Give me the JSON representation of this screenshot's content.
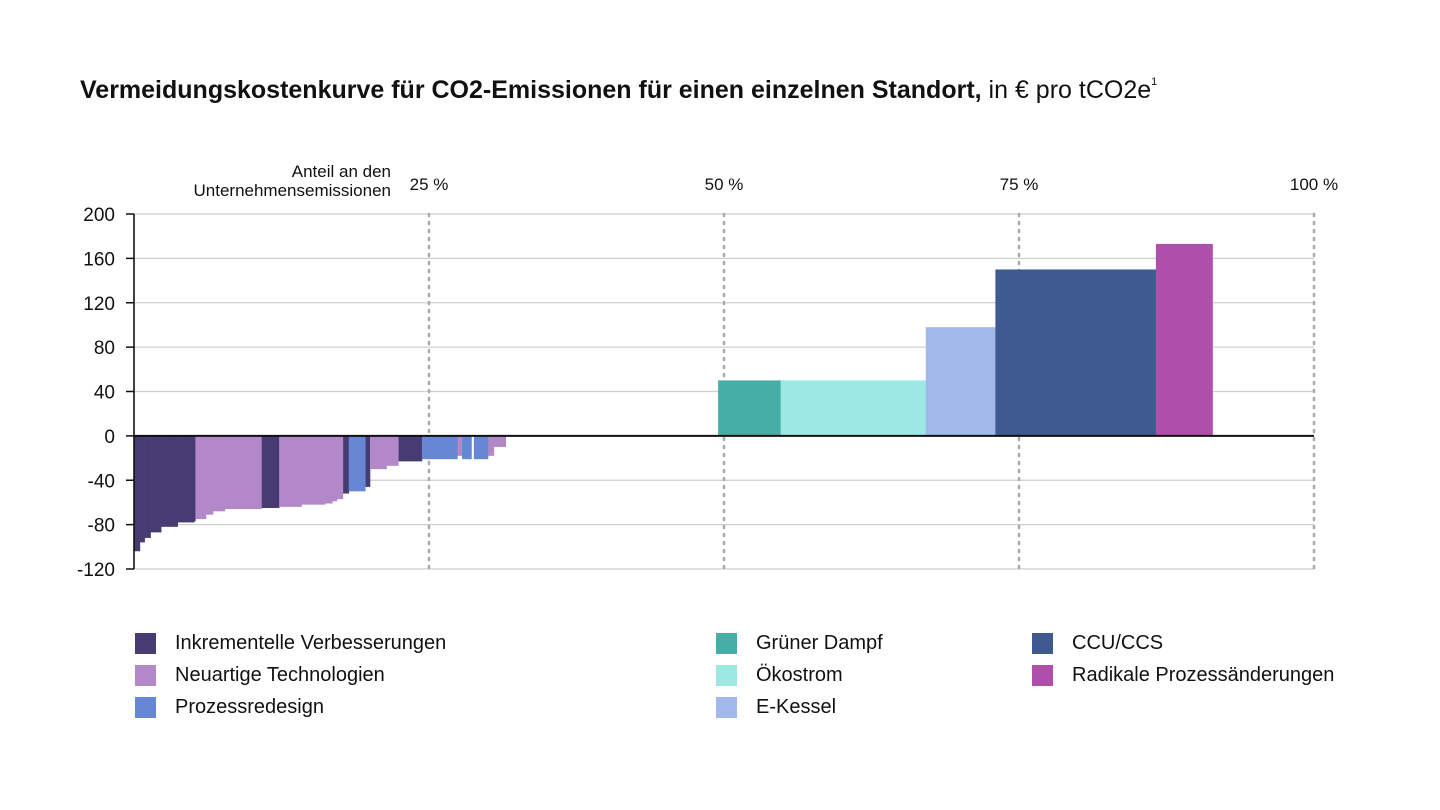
{
  "title": {
    "bold": "Vermeidungskostenkurve für CO2-Emissionen für einen einzelnen Standort,",
    "normal": " in € pro tCO2e",
    "footnote": "1"
  },
  "colors": {
    "inkrementell": "#463c72",
    "neuartig": "#b288c8",
    "prozessredesign": "#6688d4",
    "gruener_dampf": "#47aea7",
    "oekostrom": "#9de8e3",
    "ekessel": "#a3b8ea",
    "ccu": "#3e5a8e",
    "radikal": "#ad4fab"
  },
  "legend": [
    {
      "label": "Inkrementelle Verbesserungen",
      "color_key": "inkrementell"
    },
    {
      "label": "Neuartige Technologien",
      "color_key": "neuartig"
    },
    {
      "label": "Prozessredesign",
      "color_key": "prozessredesign"
    },
    {
      "label": "Grüner Dampf",
      "color_key": "gruener_dampf"
    },
    {
      "label": "Ökostrom",
      "color_key": "oekostrom"
    },
    {
      "label": "E-Kessel",
      "color_key": "ekessel"
    },
    {
      "label": "CCU/CCS",
      "color_key": "ccu"
    },
    {
      "label": "Radikale Prozessänderungen",
      "color_key": "radikal"
    }
  ],
  "chart_data": {
    "type": "bar",
    "title": "Vermeidungskostenkurve für CO2-Emissionen für einen einzelnen Standort, in € pro tCO2e",
    "xlabel": "Anteil an den Unternehmensemissionen",
    "ylabel": "",
    "x_axis_position": "top",
    "xlim": [
      0,
      100
    ],
    "ylim": [
      -120,
      200
    ],
    "xticks": [
      25,
      50,
      75,
      100
    ],
    "xtick_labels": [
      "25 %",
      "50 %",
      "75 %",
      "100 %"
    ],
    "yticks": [
      200,
      160,
      120,
      80,
      40,
      0,
      -40,
      -80,
      -120
    ],
    "ytick_labels": [
      "200",
      "160",
      "120",
      "80",
      "40",
      "0",
      "-40",
      "-80",
      "-120"
    ],
    "grid": true,
    "legend_position": "bottom",
    "series": [
      {
        "name": "Inkrementelle Verbesserungen",
        "color_key": "inkrementell",
        "bars": [
          {
            "x0": 0.0,
            "x1": 0.5,
            "value": -104
          },
          {
            "x0": 0.5,
            "x1": 0.9,
            "value": -96
          },
          {
            "x0": 0.9,
            "x1": 1.4,
            "value": -92
          },
          {
            "x0": 1.4,
            "x1": 2.3,
            "value": -87
          },
          {
            "x0": 2.3,
            "x1": 3.7,
            "value": -82
          },
          {
            "x0": 3.7,
            "x1": 5.1,
            "value": -78
          },
          {
            "x0": 5.1,
            "x1": 5.2,
            "value": -77
          },
          {
            "x0": 10.8,
            "x1": 12.3,
            "value": -65
          },
          {
            "x0": 17.7,
            "x1": 18.2,
            "value": -52
          },
          {
            "x0": 19.6,
            "x1": 20.0,
            "value": -46
          },
          {
            "x0": 22.4,
            "x1": 24.4,
            "value": -23
          }
        ]
      },
      {
        "name": "Neuartige Technologien",
        "color_key": "neuartig",
        "bars": [
          {
            "x0": 5.2,
            "x1": 6.1,
            "value": -75
          },
          {
            "x0": 6.1,
            "x1": 6.7,
            "value": -71
          },
          {
            "x0": 6.7,
            "x1": 7.7,
            "value": -68
          },
          {
            "x0": 7.7,
            "x1": 10.8,
            "value": -66
          },
          {
            "x0": 12.3,
            "x1": 14.2,
            "value": -64
          },
          {
            "x0": 14.2,
            "x1": 16.2,
            "value": -62
          },
          {
            "x0": 16.2,
            "x1": 16.8,
            "value": -61
          },
          {
            "x0": 16.8,
            "x1": 17.2,
            "value": -59
          },
          {
            "x0": 17.2,
            "x1": 17.7,
            "value": -57
          },
          {
            "x0": 20.0,
            "x1": 21.4,
            "value": -30
          },
          {
            "x0": 21.4,
            "x1": 22.4,
            "value": -27
          },
          {
            "x0": 27.4,
            "x1": 27.8,
            "value": -18
          },
          {
            "x0": 30.0,
            "x1": 30.5,
            "value": -18
          },
          {
            "x0": 30.5,
            "x1": 31.5,
            "value": -10
          }
        ]
      },
      {
        "name": "Prozessredesign",
        "color_key": "prozessredesign",
        "bars": [
          {
            "x0": 18.2,
            "x1": 19.6,
            "value": -50
          },
          {
            "x0": 24.4,
            "x1": 27.4,
            "value": -21
          },
          {
            "x0": 27.8,
            "x1": 28.6,
            "value": -21
          },
          {
            "x0": 28.8,
            "x1": 30.0,
            "value": -21
          }
        ]
      },
      {
        "name": "Grüner Dampf",
        "color_key": "gruener_dampf",
        "bars": [
          {
            "x0": 49.5,
            "x1": 54.8,
            "value": 50
          }
        ]
      },
      {
        "name": "Ökostrom",
        "color_key": "oekostrom",
        "bars": [
          {
            "x0": 54.8,
            "x1": 67.1,
            "value": 50
          }
        ]
      },
      {
        "name": "E-Kessel",
        "color_key": "ekessel",
        "bars": [
          {
            "x0": 67.1,
            "x1": 73.0,
            "value": 98
          }
        ]
      },
      {
        "name": "CCU/CCS",
        "color_key": "ccu",
        "bars": [
          {
            "x0": 73.0,
            "x1": 86.6,
            "value": 150
          }
        ]
      },
      {
        "name": "Radikale Prozessänderungen",
        "color_key": "radikal",
        "bars": [
          {
            "x0": 86.6,
            "x1": 91.4,
            "value": 173
          }
        ]
      }
    ]
  }
}
